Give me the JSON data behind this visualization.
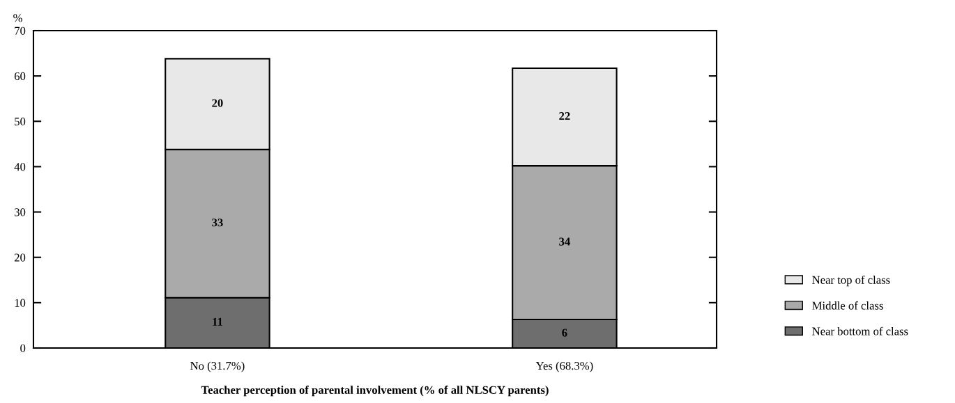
{
  "chart_data": {
    "type": "bar",
    "stacked": true,
    "ylabel": "%",
    "xlabel": "Teacher perception of parental involvement (% of all NLSCY parents)",
    "categories": [
      "No (31.7%)",
      "Yes (68.3%)"
    ],
    "series": [
      {
        "name": "Near bottom of class",
        "color": "#6e6e6e",
        "values": [
          11.1,
          6.3
        ],
        "value_labels": [
          "11",
          "6"
        ]
      },
      {
        "name": "Middle of class",
        "color": "#aaaaaa",
        "values": [
          32.7,
          33.9
        ],
        "value_labels": [
          "33",
          "34"
        ]
      },
      {
        "name": "Near top of class",
        "color": "#e8e8e8",
        "values": [
          20.0,
          21.5
        ],
        "value_labels": [
          "20",
          "22"
        ]
      }
    ],
    "ylim": [
      0,
      70
    ],
    "yticks": [
      0,
      10,
      20,
      30,
      40,
      50,
      60,
      70
    ],
    "grid": false,
    "legend": "right"
  }
}
